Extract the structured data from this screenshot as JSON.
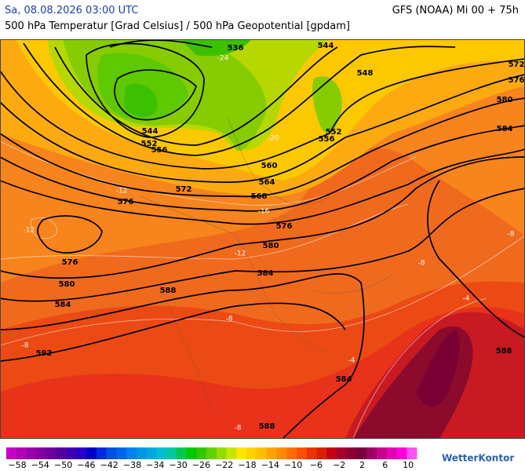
{
  "header": {
    "date": "Sa, 08.08.2026 03:00 UTC",
    "model": "GFS (NOAA) Mi 00 + 75h",
    "subtitle": "500 hPa Temperatur [Grad Celsius] / 500 hPa Geopotential [gpdam]"
  },
  "map": {
    "geopotential_labels": [
      "536",
      "544",
      "548",
      "552",
      "556",
      "572",
      "576",
      "580",
      "584",
      "544",
      "552",
      "556",
      "560",
      "564",
      "568",
      "572",
      "576",
      "576",
      "576",
      "580",
      "580",
      "584",
      "584",
      "588",
      "592",
      "584",
      "588",
      "588"
    ],
    "temperature_labels": [
      "-24",
      "-20",
      "-16",
      "-12",
      "-12",
      "-12",
      "-8",
      "-8",
      "-8",
      "-8",
      "-4",
      "-4",
      "-8"
    ]
  },
  "legend": {
    "colors": [
      "#c800c8",
      "#b400b4",
      "#9a00a8",
      "#8200a0",
      "#6a00a0",
      "#5000a0",
      "#3c00b4",
      "#2800c8",
      "#0000c8",
      "#0028dc",
      "#0050e6",
      "#0064f0",
      "#0082f0",
      "#0096e6",
      "#00aadc",
      "#00bed2",
      "#00c8a0",
      "#00c850",
      "#00c800",
      "#32c800",
      "#64d200",
      "#96dc00",
      "#c8e600",
      "#ffe600",
      "#ffd200",
      "#ffbe00",
      "#ffa500",
      "#ff8c00",
      "#ff6e00",
      "#ff5000",
      "#f03200",
      "#dc1e00",
      "#c80014",
      "#aa0028",
      "#8c0032",
      "#78003c",
      "#a00064",
      "#c8008c",
      "#e600b4",
      "#ff00dc",
      "#ff50f0"
    ],
    "labels": [
      "−58",
      "−54",
      "−50",
      "−46",
      "−42",
      "−38",
      "−34",
      "−30",
      "−26",
      "−22",
      "−18",
      "−14",
      "−10",
      "−6",
      "−2",
      "2",
      "6",
      "10"
    ]
  },
  "brand": "WetterKontor"
}
